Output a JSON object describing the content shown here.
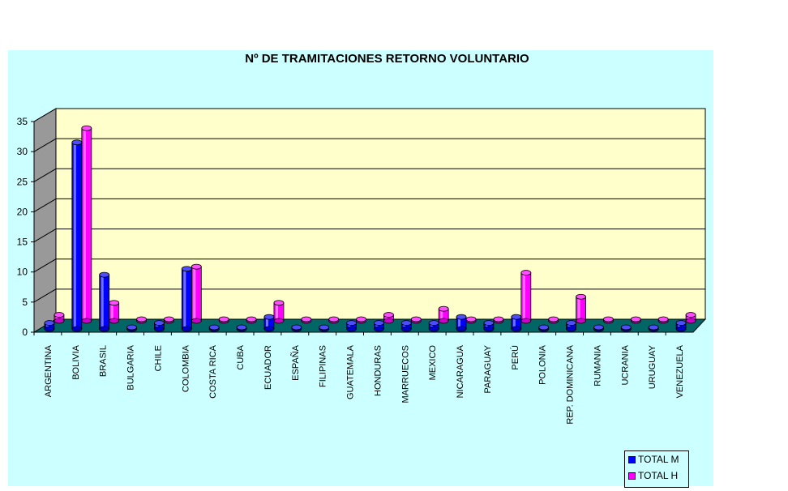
{
  "chart_data": {
    "type": "bar",
    "title": "Nº DE TRAMITACIONES RETORNO VOLUNTARIO",
    "xlabel": "",
    "ylabel": "",
    "ylim": [
      0,
      35
    ],
    "yticks": [
      "0",
      "5",
      "10",
      "15",
      "20",
      "25",
      "30",
      "35"
    ],
    "categories": [
      "ARGENTINA",
      "BOLIVIA",
      "BRASIL",
      "BULGARIA",
      "CHILE",
      "COLOMBIA",
      "COSTA RICA",
      "CUBA",
      "ECUADOR",
      "ESPAÑA",
      "FILIPINAS",
      "GUATEMALA",
      "HONDURAS",
      "MARRUECOS",
      "MEXICO",
      "NICARAGUA",
      "PARAGUAY",
      "PERÚ",
      "POLONIA",
      "REP. DOMINICANA",
      "RUMANIA",
      "UCRANIA",
      "URUGUAY",
      "VENEZUELA"
    ],
    "series": [
      {
        "name": "TOTAL M",
        "color": "#0000ff",
        "values": [
          1,
          31,
          9,
          0,
          1,
          10,
          0,
          0,
          2,
          0,
          0,
          1,
          1,
          1,
          1,
          2,
          1,
          2,
          0,
          1,
          0,
          0,
          0,
          1
        ]
      },
      {
        "name": "TOTAL H",
        "color": "#ff00ff",
        "values": [
          1,
          32,
          3,
          0,
          0,
          9,
          0,
          0,
          3,
          0,
          0,
          0,
          1,
          0,
          2,
          0,
          0,
          8,
          0,
          4,
          0,
          0,
          0,
          1
        ]
      }
    ],
    "grid": true,
    "legend_position": "bottom-right",
    "colors": {
      "plot_background": "#ffffcc",
      "chart_background": "#ccffff",
      "floor": "#006666"
    }
  }
}
